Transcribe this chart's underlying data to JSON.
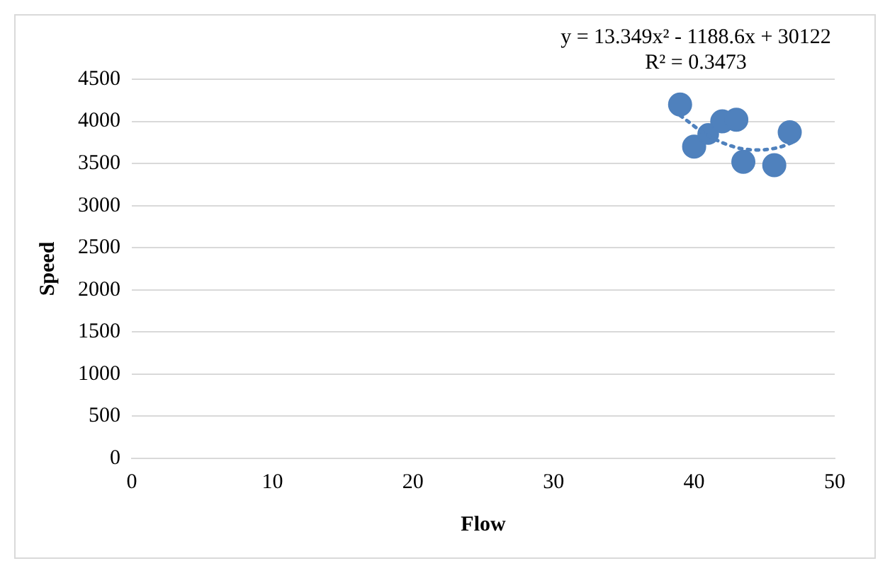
{
  "chart_data": {
    "type": "bubble",
    "xlabel": "Flow",
    "ylabel": "Speed",
    "annotations": [
      "y = 13.349x² - 1188.6x + 30122",
      "R² = 0.3473"
    ],
    "xlim": [
      0,
      50
    ],
    "xticks": [
      0,
      10,
      20,
      30,
      40,
      50
    ],
    "ylim": [
      0,
      4500
    ],
    "yticks": [
      0,
      500,
      1000,
      1500,
      2000,
      2500,
      3000,
      3500,
      4000,
      4500
    ],
    "grid": "y",
    "legend": false,
    "series": [
      {
        "type": "bubble",
        "color": "#4f81bd",
        "x": [
          39,
          40,
          41,
          42,
          43,
          43.5,
          45.7,
          46.8
        ],
        "values": [
          4200,
          3700,
          3850,
          4000,
          4020,
          3520,
          3480,
          3870
        ],
        "sizes": [
          1,
          1,
          0.8,
          1,
          1,
          1,
          1,
          1
        ]
      },
      {
        "type": "line",
        "color": "#4f81bd",
        "line_style": "dotted",
        "x": [
          39,
          41,
          43,
          44.5,
          46,
          47
        ],
        "values": [
          4070,
          3830,
          3690,
          3660,
          3690,
          3750
        ]
      }
    ]
  }
}
